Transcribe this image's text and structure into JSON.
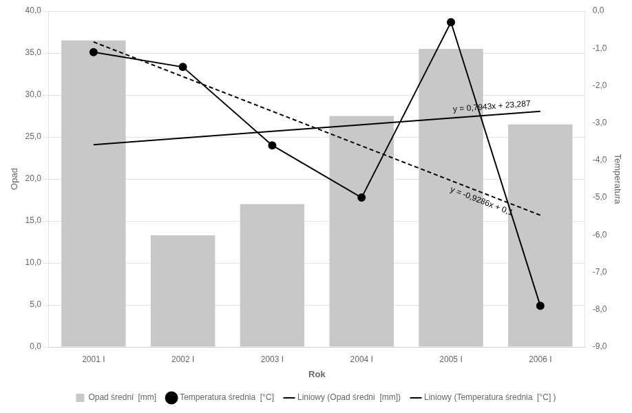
{
  "chart_data": {
    "type": "bar",
    "categories": [
      "2001 I",
      "2002 I",
      "2003 I",
      "2004 I",
      "2005 I",
      "2006 I"
    ],
    "series": [
      {
        "name": "Opad średni  [mm]",
        "type": "bar",
        "color": "#c8c8c8",
        "axis": "y",
        "values": [
          36.5,
          13.3,
          17.0,
          27.5,
          35.5,
          26.5
        ]
      },
      {
        "name": "Temperatura średnia  [°C]",
        "type": "line",
        "color": "#000000",
        "axis": "y2",
        "marker": "circle",
        "line_style": "solid",
        "values": [
          -1.1,
          -1.5,
          -3.6,
          -5.0,
          -0.3,
          -7.9
        ]
      },
      {
        "name": "Liniowy (Opad średni  [mm])",
        "type": "line",
        "color": "#000000",
        "axis": "y",
        "marker": "none",
        "line_style": "solid",
        "values": [
          24.0813,
          24.8756,
          25.6699,
          26.4642,
          27.2585,
          28.0528
        ]
      },
      {
        "name": "Liniowy (Temperatura średnia  [°C] )",
        "type": "line",
        "color": "#000000",
        "axis": "y2",
        "marker": "none",
        "line_style": "dashed",
        "values": [
          -0.8286,
          -1.7572,
          -2.6858,
          -3.6144,
          -4.543,
          -5.4716
        ]
      }
    ],
    "x_label": "Rok",
    "y_label": "Opad",
    "y2_label": "Temperatura",
    "ylim": [
      0,
      40
    ],
    "yticks": [
      {
        "value": 0.0,
        "label": "0,0"
      },
      {
        "value": 5.0,
        "label": "5,0"
      },
      {
        "value": 10.0,
        "label": "10,0"
      },
      {
        "value": 15.0,
        "label": "15,0"
      },
      {
        "value": 20.0,
        "label": "20,0"
      },
      {
        "value": 25.0,
        "label": "25,0"
      },
      {
        "value": 30.0,
        "label": "30,0"
      },
      {
        "value": 35.0,
        "label": "35,0"
      },
      {
        "value": 40.0,
        "label": "40,0"
      }
    ],
    "y2lim": [
      -9.0,
      0.0
    ],
    "y2ticks": [
      {
        "value": -9.0,
        "label": "-9,0"
      },
      {
        "value": -8.0,
        "label": "-8,0"
      },
      {
        "value": -7.0,
        "label": "-7,0"
      },
      {
        "value": -6.0,
        "label": "-6,0"
      },
      {
        "value": -5.0,
        "label": "-5,0"
      },
      {
        "value": -4.0,
        "label": "-4,0"
      },
      {
        "value": -3.0,
        "label": "-3,0"
      },
      {
        "value": -2.0,
        "label": "-2,0"
      },
      {
        "value": -1.0,
        "label": "-1,0"
      },
      {
        "value": 0.0,
        "label": "0,0"
      }
    ],
    "grid": true,
    "legend": "bottom",
    "annotations": [
      {
        "text": "y = 0,7943x + 23,287",
        "series": "Liniowy (Opad średni  [mm])"
      },
      {
        "text": "y = -0,9286x + 0,1",
        "series": "Liniowy (Temperatura średnia  [°C] )"
      }
    ]
  }
}
